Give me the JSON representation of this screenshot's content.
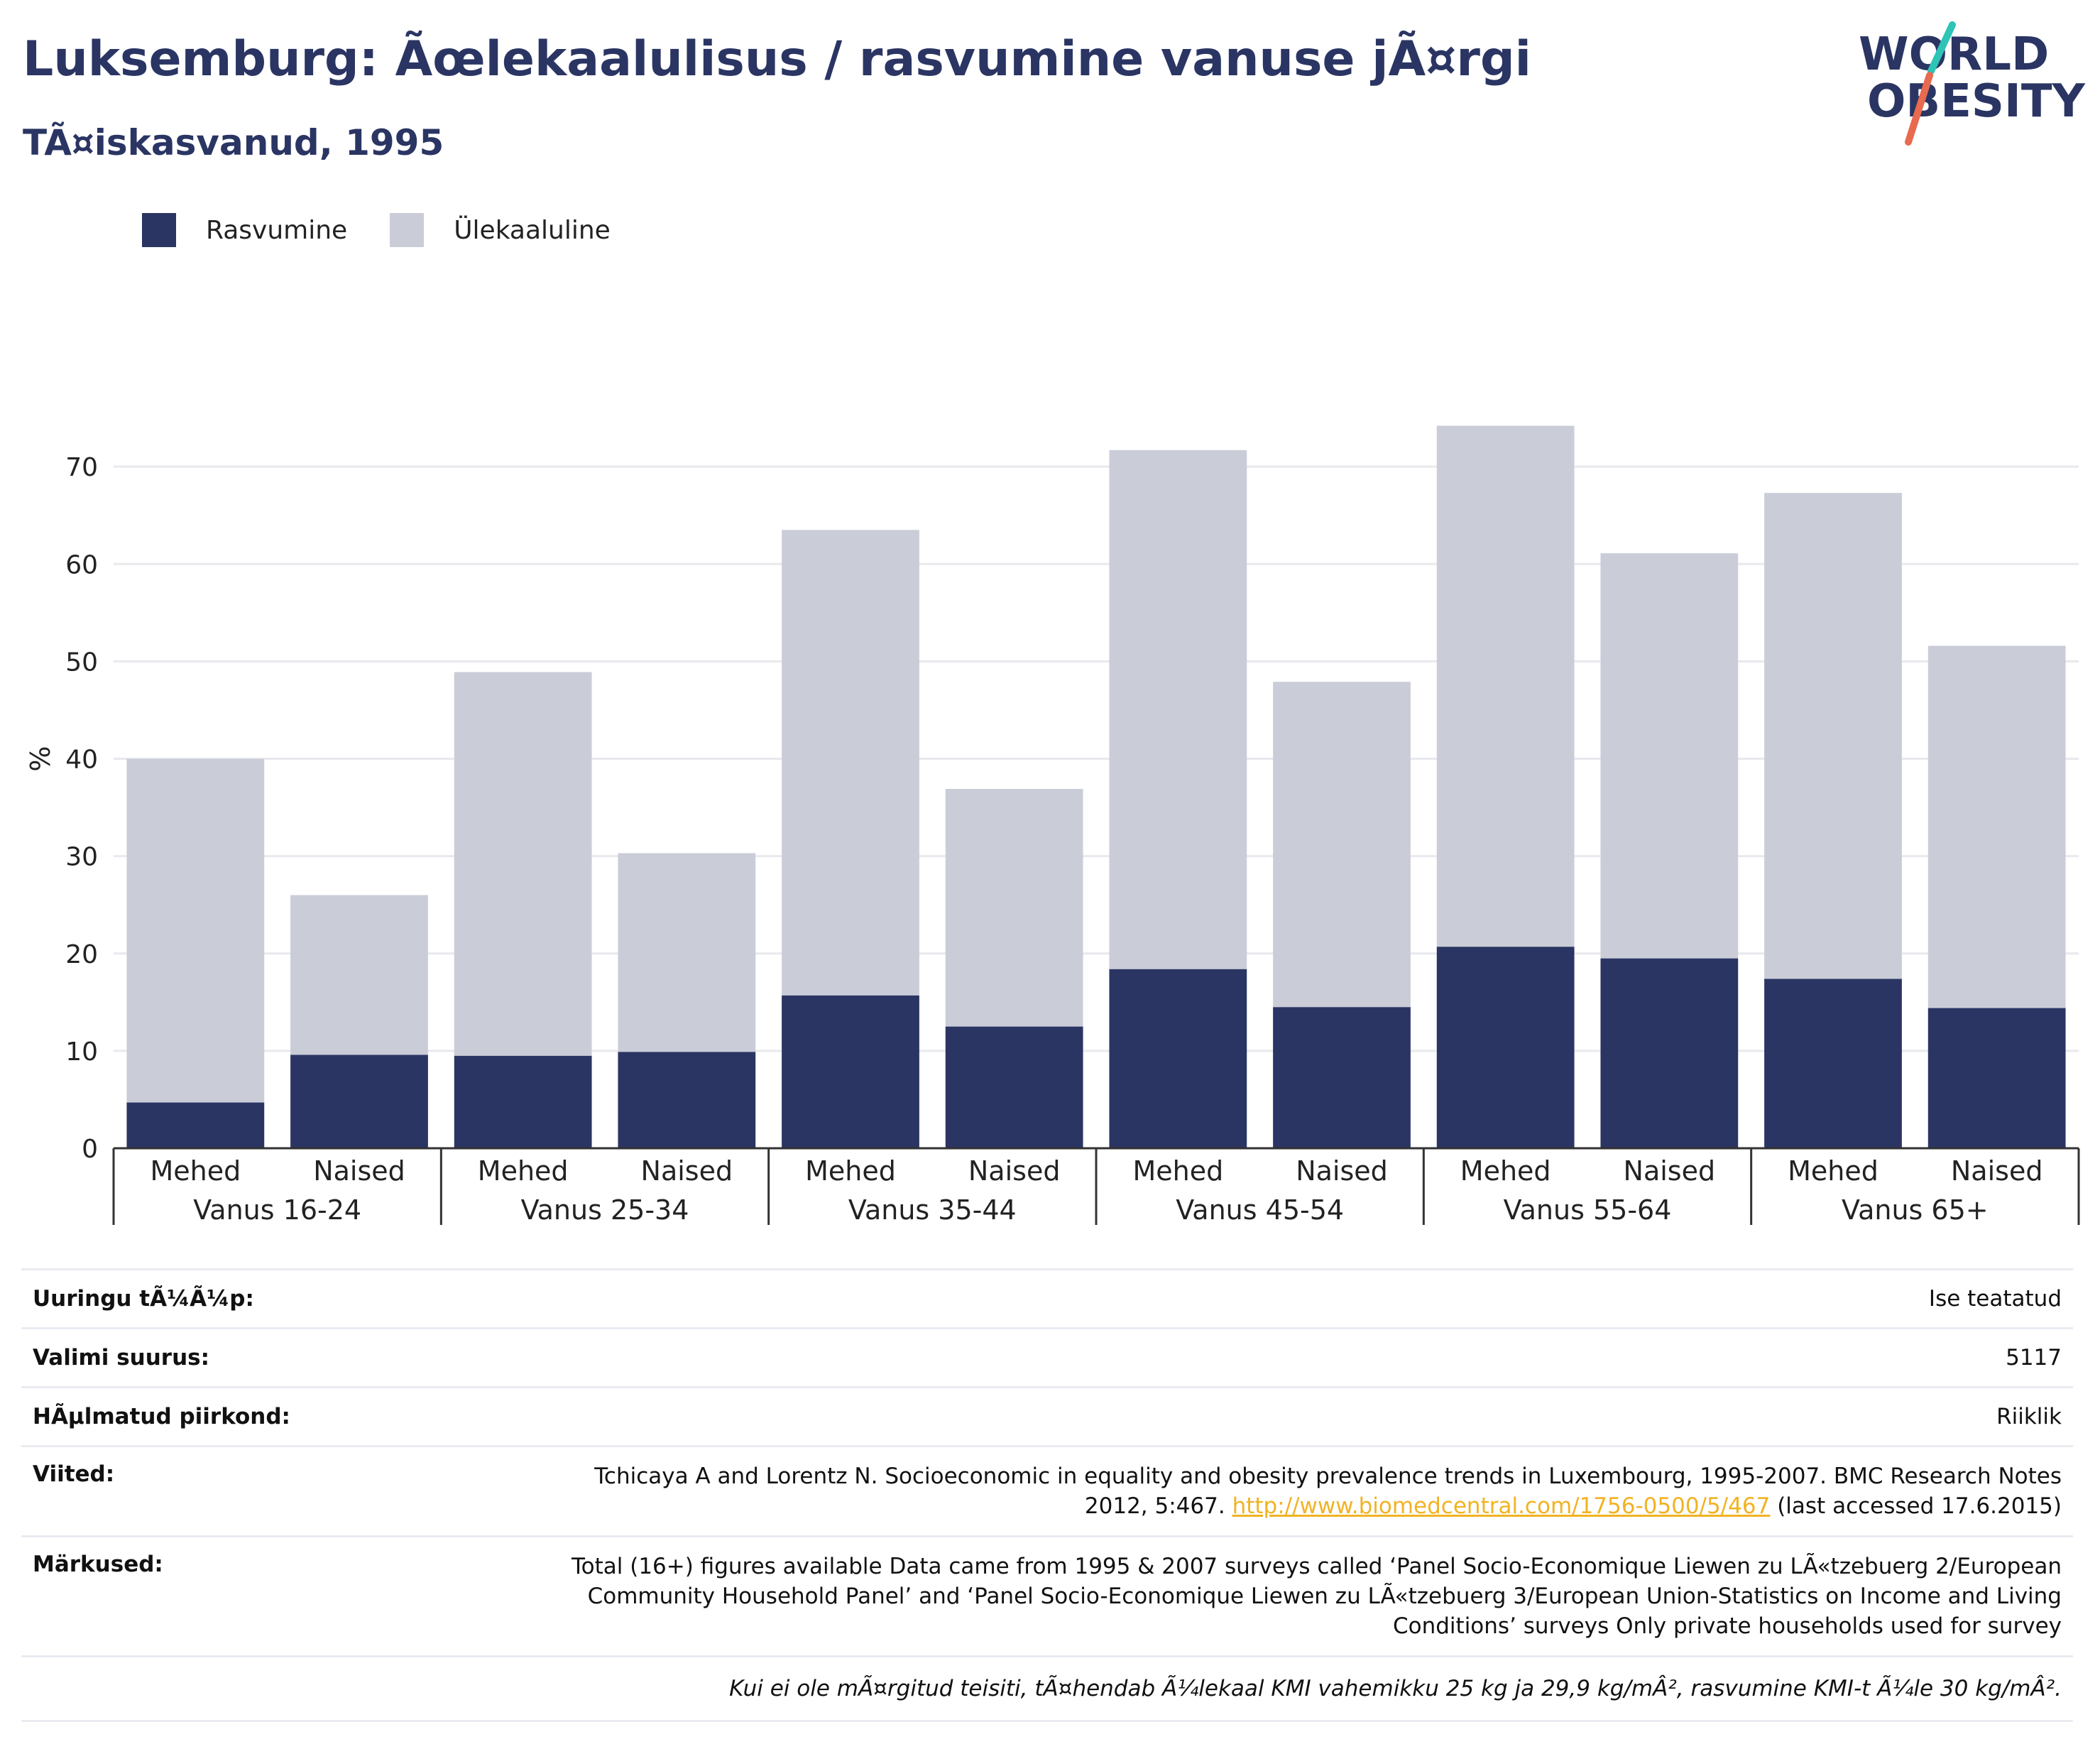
{
  "header": {
    "title": "Luksemburg: Ãœlekaalulisus / rasvumine vanuse jÃ¤rgi",
    "subtitle": "TÃ¤iskasvanud, 1995"
  },
  "logo": {
    "line1": "WORLD",
    "line2": "OBESITY",
    "accent_colors": [
      "#2ec4b6",
      "#e86a4f"
    ]
  },
  "legend": [
    {
      "label": "Rasvumine",
      "color": "#2a3563"
    },
    {
      "label": "Ülekaaluline",
      "color": "#cacdd8"
    }
  ],
  "chart_data": {
    "type": "bar",
    "stacked": true,
    "ylabel": "%",
    "ylim": [
      0,
      80
    ],
    "yticks": [
      0,
      10,
      20,
      30,
      40,
      50,
      60,
      70
    ],
    "grid": true,
    "legend_position": "top-left",
    "groups": [
      "Vanus 16-24",
      "Vanus 25-34",
      "Vanus 35-44",
      "Vanus 45-54",
      "Vanus 55-64",
      "Vanus 65+"
    ],
    "categories": [
      "Mehed",
      "Naised",
      "Mehed",
      "Naised",
      "Mehed",
      "Naised",
      "Mehed",
      "Naised",
      "Mehed",
      "Naised",
      "Mehed",
      "Naised"
    ],
    "series": [
      {
        "name": "Rasvumine",
        "color": "#2a3563",
        "values": [
          4.7,
          9.6,
          9.5,
          9.9,
          15.7,
          12.5,
          18.4,
          14.5,
          20.7,
          19.5,
          17.4,
          14.4
        ]
      },
      {
        "name": "Ülekaaluline",
        "color": "#cacdd8",
        "values": [
          35.3,
          16.4,
          39.4,
          20.4,
          47.8,
          24.4,
          53.3,
          33.4,
          53.5,
          41.6,
          49.9,
          37.2
        ]
      }
    ]
  },
  "info": {
    "survey_type_label": "Uuringu tÃ¼Ã¼p:",
    "survey_type_value": "Ise teatatud",
    "sample_size_label": "Valimi suurus:",
    "sample_size_value": "5117",
    "area_label": "HÃµlmatud piirkond:",
    "area_value": "Riiklik",
    "references_label": "Viited:",
    "references_text": "Tchicaya A and Lorentz N. Socioeconomic in equality and obesity prevalence trends in Luxembourg, 1995-2007. BMC Research Notes 2012, 5:467.",
    "references_link": "http://www.biomedcentral.com/1756-0500/5/467",
    "references_suffix": "(last accessed 17.6.2015)",
    "notes_label": "Märkused:",
    "notes_text": "Total (16+) figures available Data came from 1995 & 2007 surveys called ‘Panel Socio-Economique Liewen zu LÃ«tzebuerg 2/European Community Household Panel’ and ‘Panel Socio-Economique Liewen zu LÃ«tzebuerg 3/European Union-Statistics on Income and Living Conditions’ surveys Only private households used for survey",
    "footnote": "Kui ei ole mÃ¤rgitud teisiti, tÃ¤hendab Ã¼lekaal KMI vahemikku 25 kg ja 29,9 kg/mÂ², rasvumine KMI-t Ã¼le 30 kg/mÂ²."
  }
}
